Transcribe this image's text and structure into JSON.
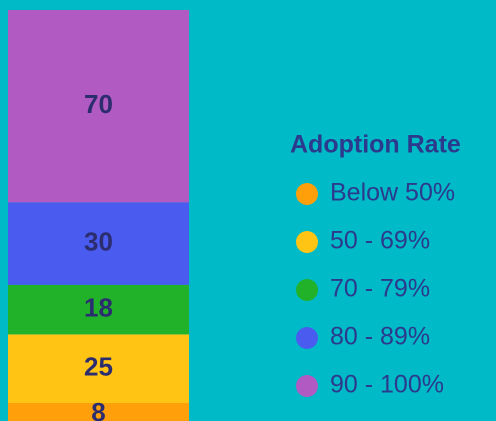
{
  "chart_data": {
    "type": "bar",
    "stacked": true,
    "categories": [
      null
    ],
    "legend_title": "Adoption Rate",
    "series": [
      {
        "name": "Below 50%",
        "color": "#ff9f0a",
        "values": [
          8
        ]
      },
      {
        "name": "50 - 69%",
        "color": "#ffc414",
        "values": [
          25
        ]
      },
      {
        "name": "70 - 79%",
        "color": "#22b22a",
        "values": [
          18
        ]
      },
      {
        "name": "80 - 89%",
        "color": "#4a5cf0",
        "values": [
          30
        ]
      },
      {
        "name": "90 - 100%",
        "color": "#b05ac2",
        "values": [
          70
        ]
      }
    ]
  }
}
